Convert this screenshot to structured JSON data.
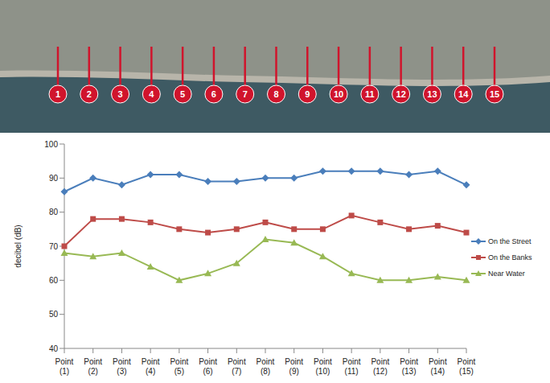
{
  "chart_data": {
    "type": "line",
    "y_label": "decibel (dB)",
    "categories": [
      "Point (1)",
      "Point (2)",
      "Point (3)",
      "Point (4)",
      "Point (5)",
      "Point (6)",
      "Point (7)",
      "Point (8)",
      "Point (9)",
      "Point (10)",
      "Point (11)",
      "Point (12)",
      "Point (13)",
      "Point (14)",
      "Point (15)"
    ],
    "series": [
      {
        "name": "On the Street",
        "color": "#4a7ebb",
        "marker": "diamond",
        "values": [
          86,
          90,
          88,
          91,
          91,
          89,
          89,
          90,
          90,
          92,
          92,
          92,
          91,
          92,
          88
        ]
      },
      {
        "name": "On the Banks",
        "color": "#be4b48",
        "marker": "square",
        "values": [
          70,
          78,
          78,
          77,
          75,
          74,
          75,
          77,
          75,
          75,
          79,
          77,
          75,
          76,
          74
        ]
      },
      {
        "name": "Near Water",
        "color": "#98b954",
        "marker": "triangle",
        "values": [
          68,
          67,
          68,
          64,
          60,
          62,
          65,
          72,
          71,
          67,
          62,
          60,
          60,
          61,
          60
        ]
      }
    ],
    "ylim": [
      40,
      100
    ],
    "yticks": [
      40,
      50,
      60,
      70,
      80,
      90,
      100
    ],
    "grid": false,
    "legend": "right"
  },
  "map": {
    "markers": [
      "1",
      "2",
      "3",
      "4",
      "5",
      "6",
      "7",
      "8",
      "9",
      "10",
      "11",
      "12",
      "13",
      "14",
      "15"
    ]
  }
}
